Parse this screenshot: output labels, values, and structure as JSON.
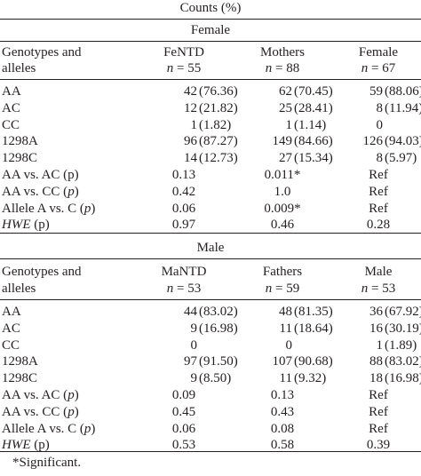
{
  "header": {
    "counts_label": "Counts (%)"
  },
  "female": {
    "section_label": "Female",
    "col0_line1": "Genotypes and",
    "col0_line2": "alleles",
    "groups": [
      {
        "name": "FeNTD",
        "n_label": "n",
        "n_value": "= 55"
      },
      {
        "name": "Mothers",
        "n_label": "n",
        "n_value": "= 88"
      },
      {
        "name": "Female",
        "n_label": "n",
        "n_value": "= 67"
      }
    ],
    "rows": [
      {
        "label": "AA",
        "v1": "42",
        "p1": "(76.36)",
        "v2": "62",
        "p2": "(70.45)",
        "v3": "59",
        "p3": "(88.06)"
      },
      {
        "label": "AC",
        "v1": "12",
        "p1": "(21.82)",
        "v2": "25",
        "p2": "(28.41)",
        "v3": "8",
        "p3": "(11.94)"
      },
      {
        "label": "CC",
        "v1": "1",
        "p1": "(1.82)",
        "v2": "1",
        "p2": "(1.14)",
        "v3": "0",
        "p3": ""
      },
      {
        "label": "1298A",
        "v1": "96",
        "p1": "(87.27)",
        "v2": "149",
        "p2": "(84.66)",
        "v3": "126",
        "p3": "(94.03)"
      },
      {
        "label": "1298C",
        "v1": "14",
        "p1": "(12.73)",
        "v2": "27",
        "p2": "(15.34)",
        "v3": "8",
        "p3": "(5.97)"
      }
    ],
    "tests": [
      {
        "label_pre": "AA vs. AC (p)",
        "label_it": "",
        "label_post": "",
        "t1": "0.13",
        "t2": "0.011*",
        "t3": "Ref"
      },
      {
        "label_pre": "AA vs. CC (",
        "label_it": "p",
        "label_post": ")",
        "t1": "0.42",
        "t2": "1.0",
        "t3": "Ref"
      },
      {
        "label_pre": "Allele A vs. C (",
        "label_it": "p",
        "label_post": ")",
        "t1": "0.06",
        "t2": "0.009*",
        "t3": "Ref"
      },
      {
        "label_pre": "",
        "label_it": "HWE",
        "label_post": " (p)",
        "t1": "0.97",
        "t2": "0.46",
        "t3": "0.28"
      }
    ]
  },
  "male": {
    "section_label": "Male",
    "col0_line1": "Genotypes and",
    "col0_line2": "alleles",
    "groups": [
      {
        "name": "MaNTD",
        "n_label": "n",
        "n_value": "= 53"
      },
      {
        "name": "Fathers",
        "n_label": "n",
        "n_value": "= 59"
      },
      {
        "name": "Male",
        "n_label": "n",
        "n_value": "= 53"
      }
    ],
    "rows": [
      {
        "label": "AA",
        "v1": "44",
        "p1": "(83.02)",
        "v2": "48",
        "p2": "(81.35)",
        "v3": "36",
        "p3": "(67.92)"
      },
      {
        "label": "AC",
        "v1": "9",
        "p1": "(16.98)",
        "v2": "11",
        "p2": "(18.64)",
        "v3": "16",
        "p3": "(30.19)"
      },
      {
        "label": "CC",
        "v1": "0",
        "p1": "",
        "v2": "0",
        "p2": "",
        "v3": "1",
        "p3": "(1.89)"
      },
      {
        "label": "1298A",
        "v1": "97",
        "p1": "(91.50)",
        "v2": "107",
        "p2": "(90.68)",
        "v3": "88",
        "p3": "(83.02)"
      },
      {
        "label": "1298C",
        "v1": "9",
        "p1": "(8.50)",
        "v2": "11",
        "p2": "(9.32)",
        "v3": "18",
        "p3": "(16.98)"
      }
    ],
    "tests": [
      {
        "label_pre": "AA vs. AC (",
        "label_it": "p",
        "label_post": ")",
        "t1": "0.09",
        "t2": "0.13",
        "t3": "Ref"
      },
      {
        "label_pre": "AA vs. CC (",
        "label_it": "p",
        "label_post": ")",
        "t1": "0.45",
        "t2": "0.43",
        "t3": "Ref"
      },
      {
        "label_pre": "Allele A vs. C (",
        "label_it": "p",
        "label_post": ")",
        "t1": "0.06",
        "t2": "0.08",
        "t3": "Ref"
      },
      {
        "label_pre": "",
        "label_it": "HWE",
        "label_post": " (p)",
        "t1": "0.53",
        "t2": "0.58",
        "t3": "0.39"
      }
    ]
  },
  "footnote": "*Significant."
}
